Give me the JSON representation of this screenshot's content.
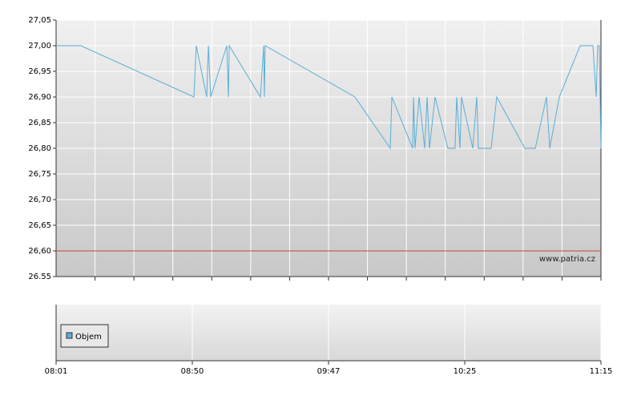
{
  "chart_data": {
    "type": "line",
    "x": [
      0,
      0.182,
      1.012,
      1.029,
      1.106,
      1.118,
      1.135,
      1.253,
      1.265,
      1.271,
      1.5,
      1.524,
      1.529,
      1.535,
      2.194,
      2.453,
      2.465,
      2.618,
      2.624,
      2.635,
      2.665,
      2.706,
      2.724,
      2.741,
      2.782,
      2.876,
      2.929,
      2.941,
      2.965,
      2.976,
      3.059,
      3.088,
      3.1,
      3.194,
      3.235,
      3.441,
      3.518,
      3.6,
      3.624,
      3.694,
      3.847,
      3.941,
      3.965,
      3.976,
      3.988,
      4
    ],
    "series": [
      {
        "color": "#5aaed6",
        "values": [
          27.0,
          27.0,
          26.9,
          27.0,
          26.9,
          27.0,
          26.9,
          27.0,
          26.9,
          27.0,
          26.9,
          27.0,
          26.9,
          27.0,
          26.9,
          26.8,
          26.9,
          26.8,
          26.9,
          26.8,
          26.9,
          26.8,
          26.9,
          26.8,
          26.9,
          26.8,
          26.8,
          26.9,
          26.8,
          26.9,
          26.8,
          26.9,
          26.8,
          26.8,
          26.9,
          26.8,
          26.8,
          26.9,
          26.8,
          26.9,
          27.0,
          27.0,
          26.9,
          27.0,
          27.0,
          26.8
        ]
      }
    ],
    "xlim": [
      0,
      4
    ],
    "xticks": [
      {
        "value": 0,
        "label": "08:01"
      },
      {
        "value": 1,
        "label": "08:50"
      },
      {
        "value": 2,
        "label": "09:47"
      },
      {
        "value": 3,
        "label": "10:25"
      },
      {
        "value": 4,
        "label": "11:15"
      }
    ],
    "ylim": [
      26.55,
      27.05
    ],
    "yticks": [
      {
        "value": 26.55,
        "label": "26.55"
      },
      {
        "value": 26.6,
        "label": "26,60"
      },
      {
        "value": 26.65,
        "label": "26,65"
      },
      {
        "value": 26.7,
        "label": "26,70"
      },
      {
        "value": 26.75,
        "label": "26,75"
      },
      {
        "value": 26.8,
        "label": "26,80"
      },
      {
        "value": 26.85,
        "label": "26,85"
      },
      {
        "value": 26.9,
        "label": "26,90"
      },
      {
        "value": 26.95,
        "label": "26,95"
      },
      {
        "value": 27.0,
        "label": "27,00"
      },
      {
        "value": 27.05,
        "label": "27,05"
      }
    ],
    "reference_line": {
      "value": 26.6,
      "color": "#d04040"
    },
    "watermark": "www.patria.cz",
    "volume_legend": {
      "name": "Objem",
      "color": "#5aaed6"
    },
    "grid": true
  }
}
